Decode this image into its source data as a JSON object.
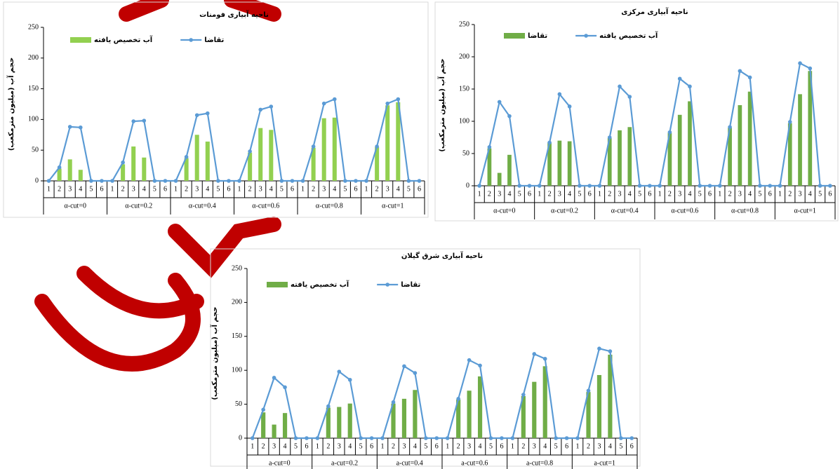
{
  "chart_data": [
    {
      "type": "combo",
      "title": "ناحیه آبیاری فومنات",
      "y_label": "حجم آب (میلیون مترمکعب)",
      "groups": [
        "α-cut=0",
        "α-cut=0.2",
        "α-cut=0.4",
        "α-cut=0.6",
        "α-cut=0.8",
        "α-cut=1"
      ],
      "categories": [
        "1",
        "2",
        "3",
        "4",
        "5",
        "6",
        "1",
        "2",
        "3",
        "4",
        "5",
        "6",
        "1",
        "2",
        "3",
        "4",
        "5",
        "6",
        "1",
        "2",
        "3",
        "4",
        "5",
        "6",
        "1",
        "2",
        "3",
        "4",
        "5",
        "6",
        "1",
        "2",
        "3",
        "4",
        "5",
        "6"
      ],
      "ylim": [
        0,
        250
      ],
      "yticks": [
        0,
        50,
        100,
        150,
        200,
        250
      ],
      "grid": false,
      "series": [
        {
          "name": "آب تخصیص یافته",
          "type": "bar",
          "color": "#92d050",
          "values": [
            0,
            20,
            35,
            18,
            0,
            0,
            0,
            27,
            56,
            38,
            0,
            0,
            0,
            37,
            75,
            64,
            0,
            0,
            0,
            46,
            86,
            83,
            0,
            0,
            0,
            54,
            102,
            103,
            0,
            0,
            0,
            55,
            123,
            128,
            0,
            0
          ]
        },
        {
          "name": "تقاضا",
          "type": "line",
          "color": "#5b9bd5",
          "values": [
            0,
            22,
            88,
            87,
            0,
            0,
            0,
            30,
            97,
            98,
            0,
            0,
            0,
            39,
            107,
            110,
            0,
            0,
            0,
            48,
            116,
            121,
            0,
            0,
            0,
            56,
            126,
            133,
            0,
            0,
            0,
            56,
            126,
            133,
            0,
            0
          ]
        }
      ]
    },
    {
      "type": "combo",
      "title": "ناحیه آبیاری مرکزی",
      "y_label": "حجم آب (میلیون مترمکعب)",
      "groups": [
        "α-cut=0",
        "α-cut=0.2",
        "α-cut=0.4",
        "α-cut=0.6",
        "α-cut=0.8",
        "α-cut=1"
      ],
      "categories": [
        "1",
        "2",
        "3",
        "4",
        "5",
        "6",
        "1",
        "2",
        "3",
        "4",
        "5",
        "6",
        "1",
        "2",
        "3",
        "4",
        "5",
        "6",
        "1",
        "2",
        "3",
        "4",
        "5",
        "6",
        "1",
        "2",
        "3",
        "4",
        "5",
        "6",
        "1",
        "2",
        "3",
        "4",
        "5",
        "6"
      ],
      "ylim": [
        0,
        250
      ],
      "yticks": [
        0,
        50,
        100,
        150,
        200,
        250
      ],
      "grid": false,
      "series": [
        {
          "name": "تقاضا",
          "type": "bar",
          "color": "#70ad47",
          "values": [
            0,
            58,
            20,
            48,
            0,
            0,
            0,
            67,
            70,
            69,
            0,
            0,
            0,
            74,
            86,
            91,
            0,
            0,
            0,
            82,
            110,
            131,
            0,
            0,
            0,
            90,
            125,
            146,
            0,
            0,
            0,
            97,
            142,
            178,
            0,
            0
          ]
        },
        {
          "name": "آب تخصیص یافته",
          "type": "line",
          "color": "#5b9bd5",
          "values": [
            0,
            60,
            130,
            108,
            0,
            0,
            0,
            67,
            142,
            123,
            0,
            0,
            0,
            75,
            154,
            138,
            0,
            0,
            0,
            83,
            166,
            154,
            0,
            0,
            0,
            91,
            178,
            168,
            0,
            0,
            0,
            99,
            190,
            182,
            0,
            0
          ]
        }
      ]
    },
    {
      "type": "combo",
      "title": "ناحیه آبیاری شرق گیلان",
      "y_label": "حجم آب (میلیون مترمکعب)",
      "groups": [
        "a-cut=0",
        "a-cut=0.2",
        "a-cut=0.4",
        "a-cut=0.6",
        "a-cut=0.8",
        "a-cut=1"
      ],
      "categories": [
        "1",
        "2",
        "3",
        "4",
        "5",
        "6",
        "1",
        "2",
        "3",
        "4",
        "5",
        "6",
        "1",
        "2",
        "3",
        "4",
        "5",
        "6",
        "1",
        "2",
        "3",
        "4",
        "5",
        "6",
        "1",
        "2",
        "3",
        "4",
        "5",
        "6",
        "1",
        "2",
        "3",
        "4",
        "5",
        "6"
      ],
      "ylim": [
        0,
        250
      ],
      "yticks": [
        0,
        50,
        100,
        150,
        200,
        250
      ],
      "grid": false,
      "series": [
        {
          "name": "آب تخصیص یافته",
          "type": "bar",
          "color": "#70ad47",
          "values": [
            0,
            38,
            20,
            37,
            0,
            0,
            0,
            45,
            46,
            51,
            0,
            0,
            0,
            51,
            58,
            71,
            0,
            0,
            0,
            57,
            70,
            91,
            0,
            0,
            0,
            62,
            83,
            106,
            0,
            0,
            0,
            68,
            93,
            123,
            0,
            0
          ]
        },
        {
          "name": "تقاضا",
          "type": "line",
          "color": "#5b9bd5",
          "values": [
            0,
            42,
            89,
            75,
            0,
            0,
            0,
            47,
            98,
            86,
            0,
            0,
            0,
            53,
            106,
            96,
            0,
            0,
            0,
            58,
            115,
            107,
            0,
            0,
            0,
            64,
            124,
            117,
            0,
            0,
            0,
            70,
            132,
            128,
            0,
            0
          ]
        }
      ]
    }
  ]
}
